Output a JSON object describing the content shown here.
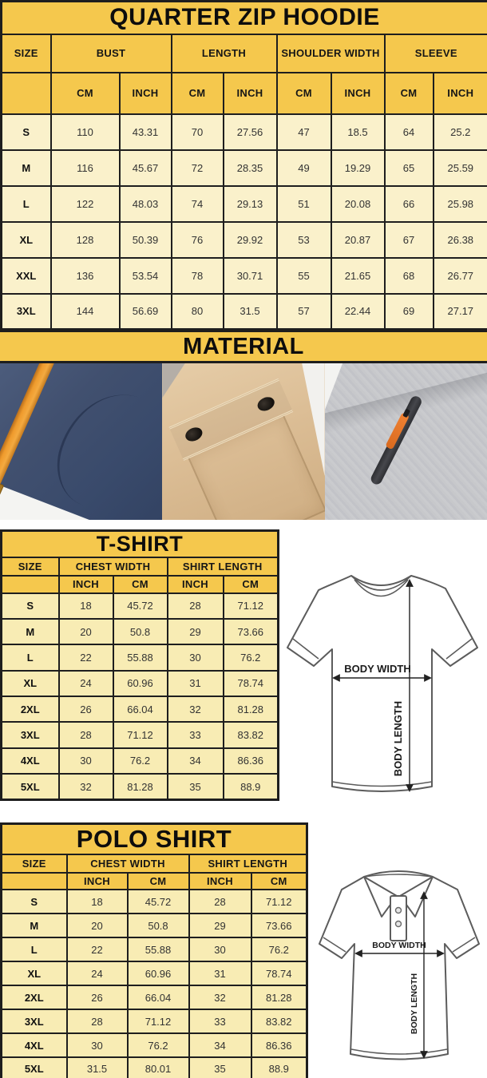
{
  "colors": {
    "gold_header": "#f5c84d",
    "cream_hoodie": "#faf1cb",
    "cream_lower": "#f8ecb4",
    "border": "#1e1e1e",
    "navy_fabric": "#41506f",
    "orange_drawstring": "#ef9b2d",
    "khaki_fabric": "#dcbe96",
    "gray_fabric": "#c6c7cb",
    "zip_orange": "#e87a30"
  },
  "tables": {
    "hoodie": {
      "title": "QUARTER ZIP HOODIE",
      "size_label": "SIZE",
      "groups": [
        {
          "label": "BUST",
          "units": [
            "CM",
            "INCH"
          ]
        },
        {
          "label": "LENGTH",
          "units": [
            "CM",
            "INCH"
          ]
        },
        {
          "label": "SHOULDER WIDTH",
          "units": [
            "CM",
            "INCH"
          ]
        },
        {
          "label": "SLEEVE",
          "units": [
            "CM",
            "INCH"
          ]
        }
      ],
      "rows": [
        {
          "size": "S",
          "values": [
            "110",
            "43.31",
            "70",
            "27.56",
            "47",
            "18.5",
            "64",
            "25.2"
          ]
        },
        {
          "size": "M",
          "values": [
            "116",
            "45.67",
            "72",
            "28.35",
            "49",
            "19.29",
            "65",
            "25.59"
          ]
        },
        {
          "size": "L",
          "values": [
            "122",
            "48.03",
            "74",
            "29.13",
            "51",
            "20.08",
            "66",
            "25.98"
          ]
        },
        {
          "size": "XL",
          "values": [
            "128",
            "50.39",
            "76",
            "29.92",
            "53",
            "20.87",
            "67",
            "26.38"
          ]
        },
        {
          "size": "XXL",
          "values": [
            "136",
            "53.54",
            "78",
            "30.71",
            "55",
            "21.65",
            "68",
            "26.77"
          ]
        },
        {
          "size": "3XL",
          "values": [
            "144",
            "56.69",
            "80",
            "31.5",
            "57",
            "22.44",
            "69",
            "27.17"
          ]
        }
      ]
    },
    "tshirt": {
      "title": "T-SHIRT",
      "size_label": "SIZE",
      "groups": [
        {
          "label": "CHEST WIDTH",
          "units": [
            "INCH",
            "CM"
          ]
        },
        {
          "label": "SHIRT LENGTH",
          "units": [
            "INCH",
            "CM"
          ]
        }
      ],
      "rows": [
        {
          "size": "S",
          "values": [
            "18",
            "45.72",
            "28",
            "71.12"
          ]
        },
        {
          "size": "M",
          "values": [
            "20",
            "50.8",
            "29",
            "73.66"
          ]
        },
        {
          "size": "L",
          "values": [
            "22",
            "55.88",
            "30",
            "76.2"
          ]
        },
        {
          "size": "XL",
          "values": [
            "24",
            "60.96",
            "31",
            "78.74"
          ]
        },
        {
          "size": "2XL",
          "values": [
            "26",
            "66.04",
            "32",
            "81.28"
          ]
        },
        {
          "size": "3XL",
          "values": [
            "28",
            "71.12",
            "33",
            "83.82"
          ]
        },
        {
          "size": "4XL",
          "values": [
            "30",
            "76.2",
            "34",
            "86.36"
          ]
        },
        {
          "size": "5XL",
          "values": [
            "32",
            "81.28",
            "35",
            "88.9"
          ]
        }
      ]
    },
    "polo": {
      "title": "POLO SHIRT",
      "size_label": "SIZE",
      "groups": [
        {
          "label": "CHEST WIDTH",
          "units": [
            "INCH",
            "CM"
          ]
        },
        {
          "label": "SHIRT LENGTH",
          "units": [
            "INCH",
            "CM"
          ]
        }
      ],
      "rows": [
        {
          "size": "S",
          "values": [
            "18",
            "45.72",
            "28",
            "71.12"
          ]
        },
        {
          "size": "M",
          "values": [
            "20",
            "50.8",
            "29",
            "73.66"
          ]
        },
        {
          "size": "L",
          "values": [
            "22",
            "55.88",
            "30",
            "76.2"
          ]
        },
        {
          "size": "XL",
          "values": [
            "24",
            "60.96",
            "31",
            "78.74"
          ]
        },
        {
          "size": "2XL",
          "values": [
            "26",
            "66.04",
            "32",
            "81.28"
          ]
        },
        {
          "size": "3XL",
          "values": [
            "28",
            "71.12",
            "33",
            "83.82"
          ]
        },
        {
          "size": "4XL",
          "values": [
            "30",
            "76.2",
            "34",
            "86.36"
          ]
        },
        {
          "size": "5XL",
          "values": [
            "31.5",
            "80.01",
            "35",
            "88.9"
          ]
        }
      ]
    }
  },
  "material": {
    "title": "MATERIAL",
    "photos": [
      {
        "name": "navy-fleece-orange-drawstring"
      },
      {
        "name": "khaki-flap-pocket-snaps"
      },
      {
        "name": "gray-fleece-zip-pocket"
      }
    ]
  },
  "diagrams": {
    "tshirt": {
      "width_label": "BODY WIDTH",
      "length_label": "BODY LENGTH"
    },
    "polo": {
      "width_label": "BODY WIDTH",
      "length_label": "BODY LENGTH"
    }
  }
}
